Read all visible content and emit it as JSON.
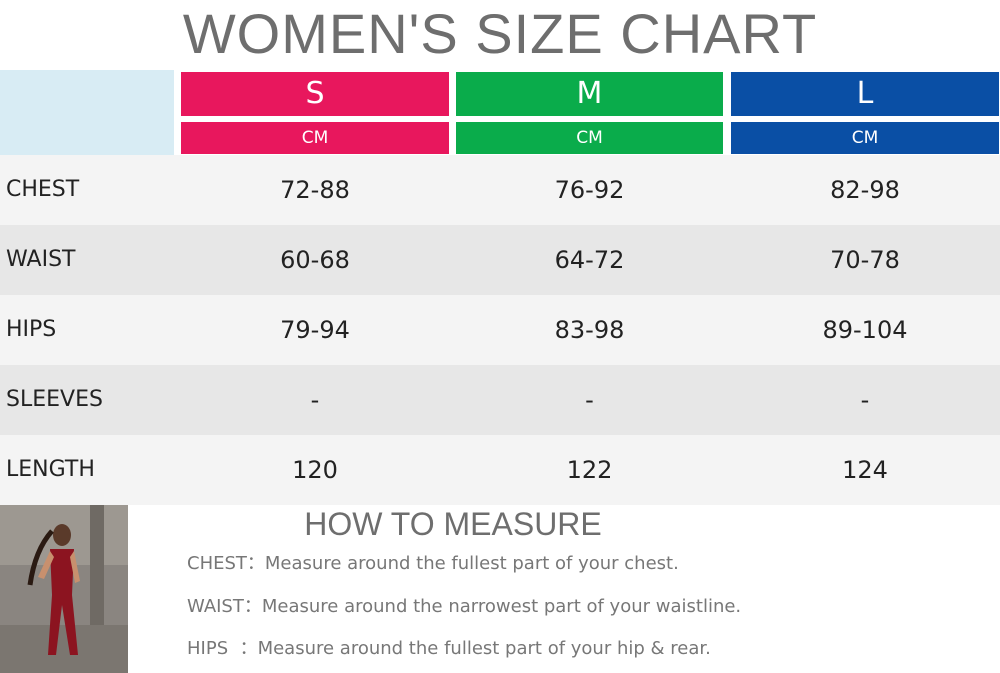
{
  "title": "WOMEN'S SIZE CHART",
  "columns": [
    {
      "size": "S",
      "unit": "CM",
      "color": "#e8175d"
    },
    {
      "size": "M",
      "unit": "CM",
      "color": "#0aac4b"
    },
    {
      "size": "L",
      "unit": "CM",
      "color": "#0a4fa5"
    }
  ],
  "rows": [
    {
      "label": "CHEST",
      "cells": [
        "72-88",
        "76-92",
        "82-98"
      ]
    },
    {
      "label": "WAIST",
      "cells": [
        "60-68",
        "64-72",
        "70-78"
      ]
    },
    {
      "label": "HIPS",
      "cells": [
        "79-94",
        "83-98",
        "89-104"
      ]
    },
    {
      "label": "SLEEVES",
      "cells": [
        "-",
        "-",
        "-"
      ]
    },
    {
      "label": "LENGTH",
      "cells": [
        "120",
        "122",
        "124"
      ]
    }
  ],
  "measure": {
    "title": "HOW TO MEASURE",
    "items": [
      {
        "label": "CHEST：",
        "text": "Measure around the fullest part of your chest."
      },
      {
        "label": "WAIST：",
        "text": "Measure around the narrowest part of your waistline."
      },
      {
        "label": "HIPS  ：",
        "text": "Measure around the fullest part of your hip & rear."
      }
    ]
  }
}
